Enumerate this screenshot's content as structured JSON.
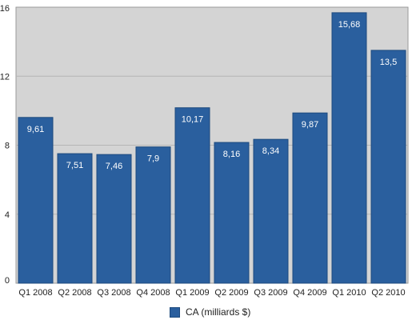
{
  "chart_data": {
    "type": "bar",
    "categories": [
      "Q1 2008",
      "Q2 2008",
      "Q3 2008",
      "Q4 2008",
      "Q1 2009",
      "Q2 2009",
      "Q3 2009",
      "Q4 2009",
      "Q1 2010",
      "Q2 2010"
    ],
    "series": [
      {
        "name": "CA (milliards $)",
        "values": [
          9.61,
          7.51,
          7.46,
          7.9,
          10.17,
          8.16,
          8.34,
          9.87,
          15.68,
          13.5
        ],
        "labels": [
          "9,61",
          "7,51",
          "7,46",
          "7,9",
          "10,17",
          "8,16",
          "8,34",
          "9,87",
          "15,68",
          "13,5"
        ]
      }
    ],
    "ylim": [
      0,
      16
    ],
    "yticks": [
      "0",
      "4",
      "8",
      "12",
      "16"
    ],
    "grid": true,
    "legend": "bottom",
    "colors": {
      "bar": "#2a5f9e",
      "bar_edge": "#1d4a7e",
      "plot_bg": "#d4d4d4",
      "grid": "#b5b5b5"
    }
  }
}
